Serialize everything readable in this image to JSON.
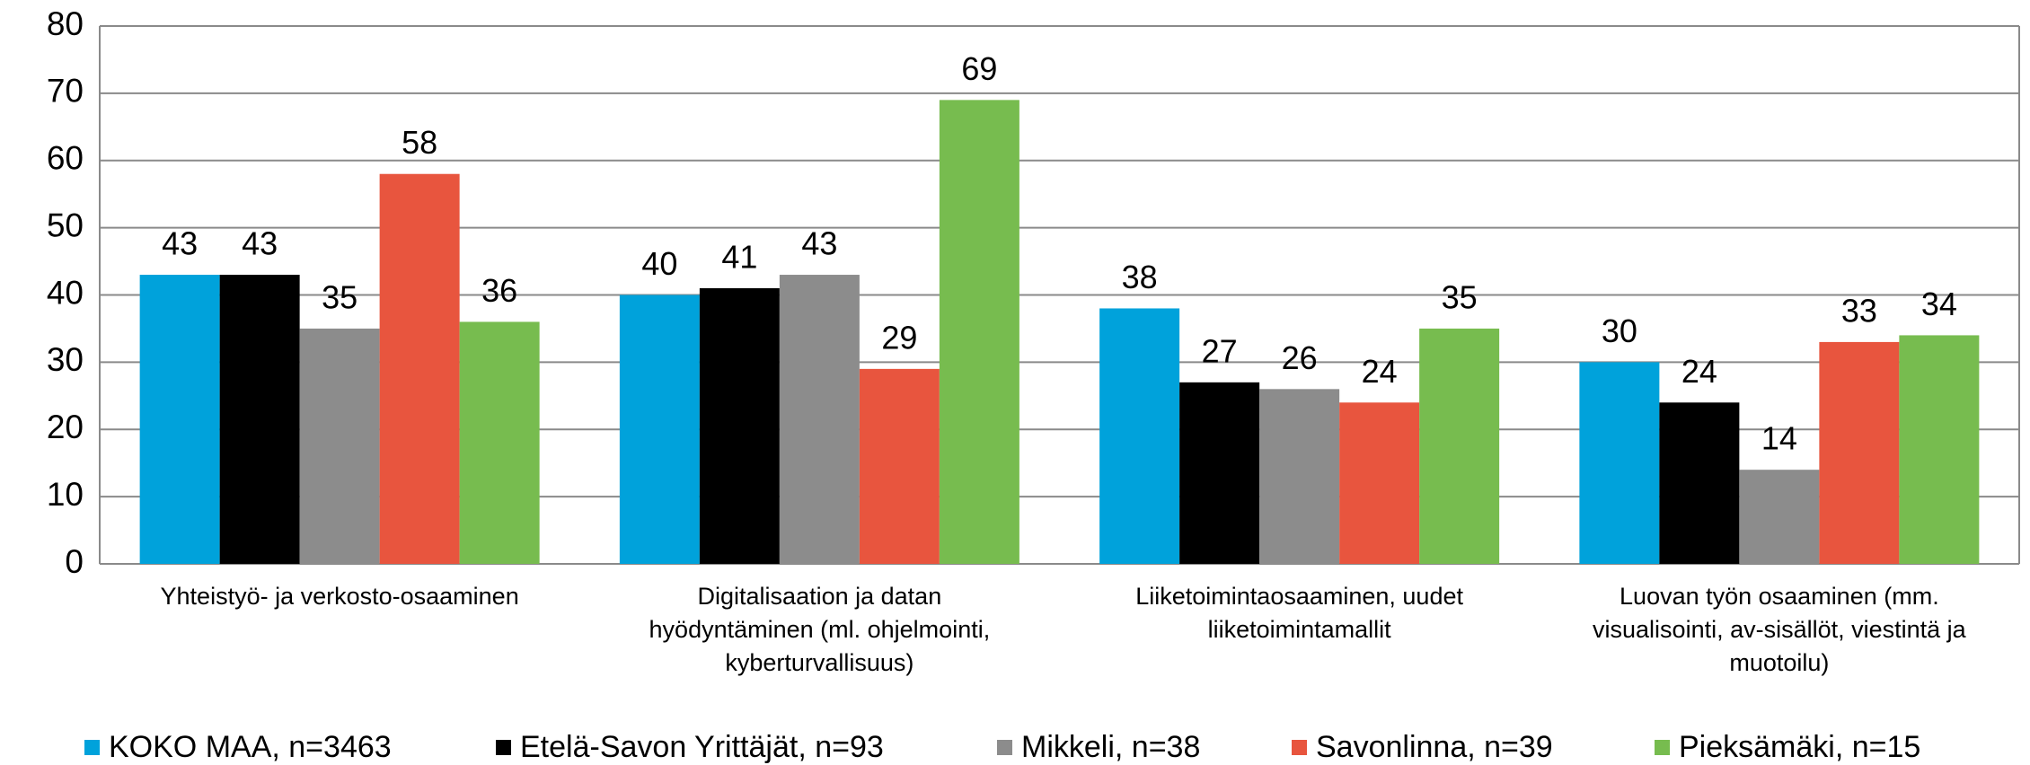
{
  "chart_data": {
    "type": "bar",
    "categories": [
      [
        "Yhteistyö- ja verkosto-osaaminen"
      ],
      [
        "Digitalisaation ja datan",
        "hyödyntäminen (ml. ohjelmointi,",
        "kyberturvallisuus)"
      ],
      [
        "Liiketoimintaosaaminen, uudet",
        "liiketoimintamallit"
      ],
      [
        "Luovan työn osaaminen (mm.",
        "visualisointi, av-sisällöt, viestintä ja",
        "muotoilu)"
      ]
    ],
    "series": [
      {
        "name": "KOKO MAA, n=3463",
        "color": "#00a2db",
        "values": [
          43,
          40,
          38,
          30
        ]
      },
      {
        "name": "Etelä-Savon Yrittäjät, n=93",
        "color": "#000000",
        "values": [
          43,
          41,
          27,
          24
        ]
      },
      {
        "name": "Mikkeli, n=38",
        "color": "#8c8c8c",
        "values": [
          35,
          43,
          26,
          14
        ]
      },
      {
        "name": "Savonlinna, n=39",
        "color": "#e8553e",
        "values": [
          58,
          29,
          24,
          33
        ]
      },
      {
        "name": "Pieksämäki, n=15",
        "color": "#77bc4f",
        "values": [
          36,
          69,
          35,
          34
        ]
      }
    ],
    "ylim": [
      0,
      80
    ],
    "yticks": [
      0,
      10,
      20,
      30,
      40,
      50,
      60,
      70,
      80
    ],
    "grid": true,
    "legend": "bottom"
  }
}
